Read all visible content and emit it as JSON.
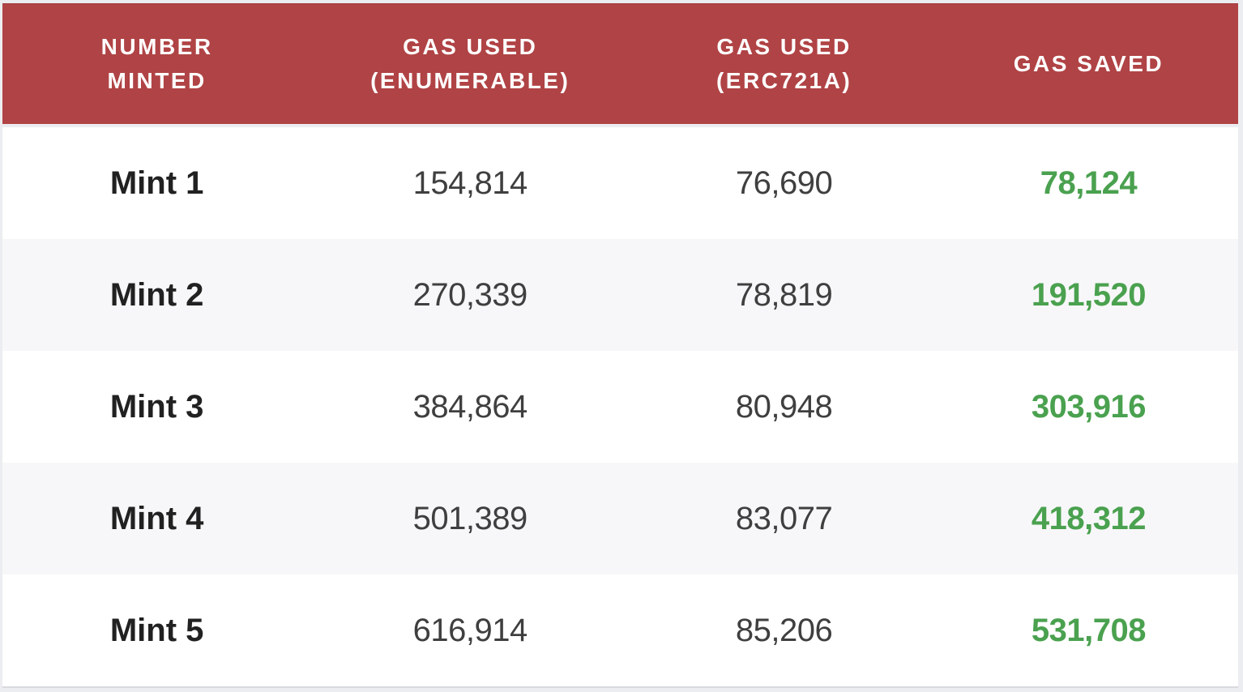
{
  "table": {
    "columns": [
      {
        "line1": "NUMBER",
        "line2": "MINTED"
      },
      {
        "line1": "GAS USED",
        "line2": "(ENUMERABLE)"
      },
      {
        "line1": "GAS USED",
        "line2": "(ERC721A)"
      },
      {
        "line1": "GAS SAVED"
      }
    ],
    "rows": [
      {
        "label": "Mint 1",
        "enumerable": "154,814",
        "erc721a": "76,690",
        "saved": "78,124"
      },
      {
        "label": "Mint 2",
        "enumerable": "270,339",
        "erc721a": "78,819",
        "saved": "191,520"
      },
      {
        "label": "Mint 3",
        "enumerable": "384,864",
        "erc721a": "80,948",
        "saved": "303,916"
      },
      {
        "label": "Mint 4",
        "enumerable": "501,389",
        "erc721a": "83,077",
        "saved": "418,312"
      },
      {
        "label": "Mint 5",
        "enumerable": "616,914",
        "erc721a": "85,206",
        "saved": "531,708"
      }
    ]
  },
  "colors": {
    "header_bg": "#b04345",
    "header_text": "#ffffff",
    "row_bg": "#ffffff",
    "row_alt_bg": "#f7f7f9",
    "mint_label": "#212121",
    "gas_number": "#3f3f40",
    "gas_saved_green": "#4aa14f",
    "page_bg": "#ecedf1"
  },
  "chart_data": {
    "type": "table",
    "title": "",
    "columns": [
      "NUMBER MINTED",
      "GAS USED (ENUMERABLE)",
      "GAS USED (ERC721A)",
      "GAS SAVED"
    ],
    "rows": [
      [
        "Mint 1",
        154814,
        76690,
        78124
      ],
      [
        "Mint 2",
        270339,
        78819,
        191520
      ],
      [
        "Mint 3",
        384864,
        80948,
        303916
      ],
      [
        "Mint 4",
        501389,
        83077,
        418312
      ],
      [
        "Mint 5",
        616914,
        85206,
        531708
      ]
    ]
  }
}
